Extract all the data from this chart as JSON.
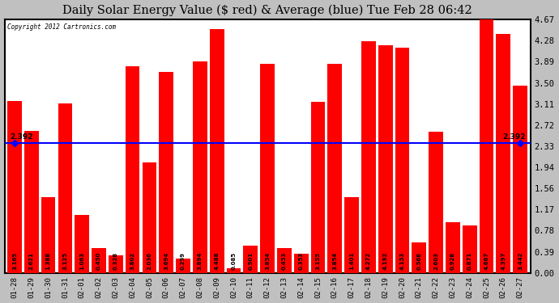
{
  "title": "Daily Solar Energy Value ($ red) & Average (blue) Tue Feb 28 06:42",
  "copyright": "Copyright 2012 Cartronics.com",
  "categories": [
    "01-28",
    "01-29",
    "01-30",
    "01-31",
    "02-01",
    "02-02",
    "02-03",
    "02-04",
    "02-05",
    "02-06",
    "02-07",
    "02-08",
    "02-09",
    "02-10",
    "02-11",
    "02-12",
    "02-13",
    "02-14",
    "02-15",
    "02-16",
    "02-17",
    "02-18",
    "02-19",
    "02-20",
    "02-21",
    "02-22",
    "02-23",
    "02-24",
    "02-25",
    "02-26",
    "02-27"
  ],
  "values": [
    3.165,
    2.621,
    1.388,
    3.125,
    1.063,
    0.45,
    0.328,
    3.802,
    2.036,
    3.694,
    0.259,
    3.894,
    4.488,
    0.085,
    0.501,
    3.854,
    0.453,
    0.353,
    3.155,
    3.854,
    1.401,
    4.272,
    4.192,
    4.153,
    0.568,
    2.603,
    0.928,
    0.871,
    4.667,
    4.397,
    3.442
  ],
  "average": 2.392,
  "bar_color": "#ff0000",
  "average_color": "#0000ff",
  "fig_background_color": "#c0c0c0",
  "plot_bg_color": "#ffffff",
  "grid_color": "#aaaaaa",
  "title_fontsize": 10.5,
  "bar_label_fontsize": 5.0,
  "tick_label_fontsize": 6.5,
  "ytick_label_fontsize": 7.5,
  "ylim": [
    0,
    4.67
  ],
  "yticks": [
    0.0,
    0.39,
    0.78,
    1.17,
    1.56,
    1.94,
    2.33,
    2.72,
    3.11,
    3.5,
    3.89,
    4.28,
    4.67
  ]
}
